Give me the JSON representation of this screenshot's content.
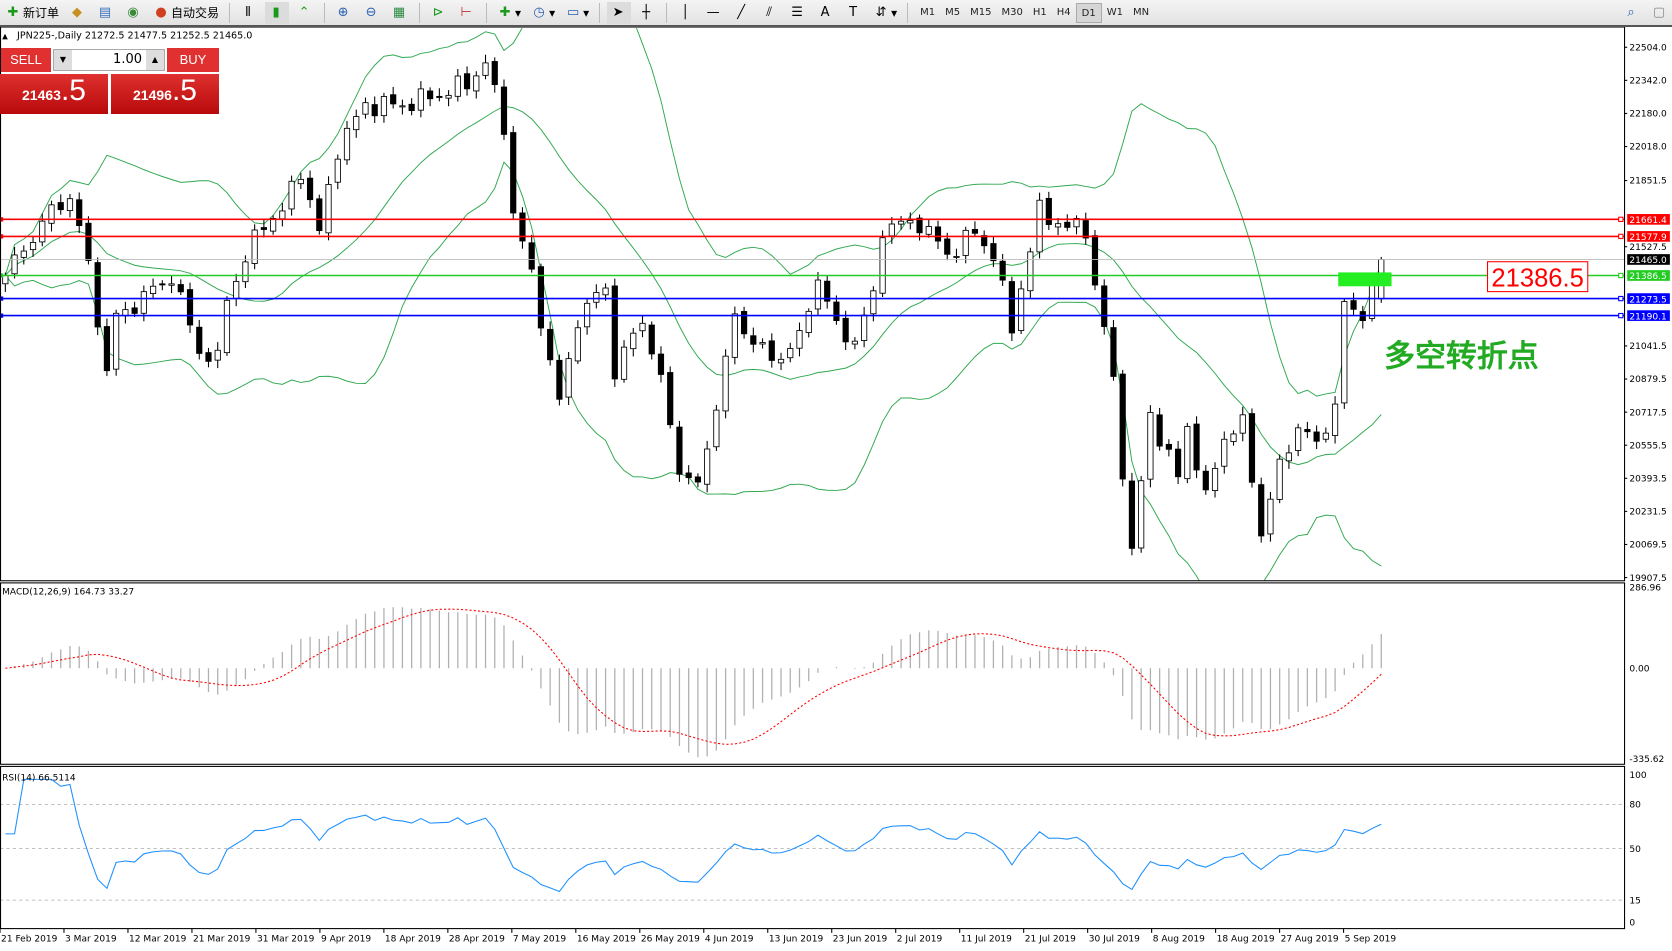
{
  "toolbar": {
    "new_order": "新订单",
    "auto_trading": "自动交易",
    "icons": [
      "new-order-icon",
      "market-watch-icon",
      "navigator-icon",
      "signals-icon",
      "auto-trading-icon",
      "bar-chart-icon",
      "candlestick-icon",
      "line-chart-icon",
      "zoom-in-icon",
      "zoom-out-icon",
      "tile-windows-icon",
      "autoscroll-icon",
      "chart-shift-icon",
      "indicators-icon",
      "periods-icon",
      "templates-icon",
      "cursor-icon",
      "crosshair-icon",
      "vertical-line-icon",
      "horizontal-line-icon",
      "trendline-icon",
      "equidistant-channel-icon",
      "fibonacci-icon",
      "text-icon",
      "text-label-icon",
      "arrows-icon"
    ],
    "timeframes": [
      "M1",
      "M5",
      "M15",
      "M30",
      "H1",
      "H4",
      "D1",
      "W1",
      "MN"
    ],
    "active_timeframe": "D1"
  },
  "header": {
    "symbol_line": "JPN225-,Daily  21272.5 21477.5 21252.5 21465.0"
  },
  "trade_panel": {
    "sell_label": "SELL",
    "buy_label": "BUY",
    "lot": "1.00",
    "sell_big": "21463",
    "sell_small": ".5",
    "buy_big": "21496",
    "buy_small": ".5"
  },
  "price_axis": [
    "22504.0",
    "22342.0",
    "22180.0",
    "22018.0",
    "21851.5",
    "21689.5",
    "21527.5",
    "21365.5",
    "21041.5",
    "20879.5",
    "20717.5",
    "20555.5",
    "20393.5",
    "20231.5",
    "20069.5",
    "19907.5"
  ],
  "levels": [
    {
      "price": 21661.4,
      "label": "21661.4",
      "color": "#ff0000"
    },
    {
      "price": 21577.9,
      "label": "21577.9",
      "color": "#ff0000"
    },
    {
      "price": 21386.5,
      "label": "21386.5",
      "color": "#22cc22"
    },
    {
      "price": 21273.5,
      "label": "21273.5",
      "color": "#0000ff"
    },
    {
      "price": 21190.1,
      "label": "21190.1",
      "color": "#0000ff"
    }
  ],
  "current_price": {
    "price": 21465.0,
    "label": "21465.0"
  },
  "annotation": {
    "price_box": "21386.5",
    "text": "多空转折点",
    "text_color": "#22aa22"
  },
  "macd": {
    "label": "MACD(12,26,9) 164.73 33.27",
    "axis": [
      "286.96",
      "0.00",
      "-335.62"
    ]
  },
  "rsi": {
    "label": "RSI(14) 66.5114",
    "axis": [
      "100",
      "80",
      "50",
      "15",
      "0"
    ]
  },
  "dates": [
    "21 Feb 2019",
    "3 Mar 2019",
    "12 Mar 2019",
    "21 Mar 2019",
    "31 Mar 2019",
    "9 Apr 2019",
    "18 Apr 2019",
    "28 Apr 2019",
    "7 May 2019",
    "16 May 2019",
    "26 May 2019",
    "4 Jun 2019",
    "13 Jun 2019",
    "23 Jun 2019",
    "2 Jul 2019",
    "11 Jul 2019",
    "21 Jul 2019",
    "30 Jul 2019",
    "8 Aug 2019",
    "18 Aug 2019",
    "27 Aug 2019",
    "5 Sep 2019"
  ],
  "chart_data": {
    "type": "candlestick",
    "symbol": "JPN225-",
    "timeframe": "Daily",
    "ylim": [
      19907.5,
      22504.0
    ],
    "last_ohlc": {
      "open": 21272.5,
      "high": 21477.5,
      "low": 21252.5,
      "close": 21465.0
    },
    "bars": 150,
    "close_keypoints": [
      [
        0,
        21386
      ],
      [
        2,
        21517
      ],
      [
        5,
        21700
      ],
      [
        7,
        21778
      ],
      [
        9,
        21438
      ],
      [
        11,
        20916
      ],
      [
        12,
        21177
      ],
      [
        15,
        21282
      ],
      [
        18,
        21386
      ],
      [
        21,
        21020
      ],
      [
        23,
        20968
      ],
      [
        24,
        21282
      ],
      [
        28,
        21648
      ],
      [
        30,
        21700
      ],
      [
        32,
        21908
      ],
      [
        34,
        21595
      ],
      [
        36,
        22013
      ],
      [
        39,
        22222
      ],
      [
        43,
        22222
      ],
      [
        47,
        22274
      ],
      [
        50,
        22326
      ],
      [
        52,
        22431
      ],
      [
        54,
        22117
      ],
      [
        55,
        21700
      ],
      [
        57,
        21386
      ],
      [
        58,
        21177
      ],
      [
        60,
        20759
      ],
      [
        62,
        21177
      ],
      [
        65,
        21334
      ],
      [
        66,
        20916
      ],
      [
        69,
        21177
      ],
      [
        71,
        20864
      ],
      [
        73,
        20446
      ],
      [
        75,
        20341
      ],
      [
        77,
        20759
      ],
      [
        79,
        21177
      ],
      [
        83,
        20968
      ],
      [
        86,
        21073
      ],
      [
        88,
        21386
      ],
      [
        90,
        21125
      ],
      [
        92,
        21073
      ],
      [
        94,
        21282
      ],
      [
        95,
        21621
      ],
      [
        99,
        21648
      ],
      [
        102,
        21491
      ],
      [
        105,
        21595
      ],
      [
        107,
        21491
      ],
      [
        109,
        21125
      ],
      [
        110,
        21334
      ],
      [
        112,
        21700
      ],
      [
        115,
        21621
      ],
      [
        117,
        21621
      ],
      [
        118,
        21334
      ],
      [
        119,
        21125
      ],
      [
        120,
        20864
      ],
      [
        122,
        20028
      ],
      [
        124,
        20707
      ],
      [
        127,
        20393
      ],
      [
        128,
        20655
      ],
      [
        130,
        20289
      ],
      [
        132,
        20603
      ],
      [
        134,
        20655
      ],
      [
        136,
        20132
      ],
      [
        138,
        20446
      ],
      [
        140,
        20655
      ],
      [
        142,
        20550
      ],
      [
        144,
        20759
      ],
      [
        145,
        21230
      ],
      [
        147,
        21204
      ],
      [
        149,
        21465
      ]
    ],
    "indicators": [
      "Bollinger Bands(20,2)",
      "MACD(12,26,9)",
      "RSI(14)"
    ]
  }
}
